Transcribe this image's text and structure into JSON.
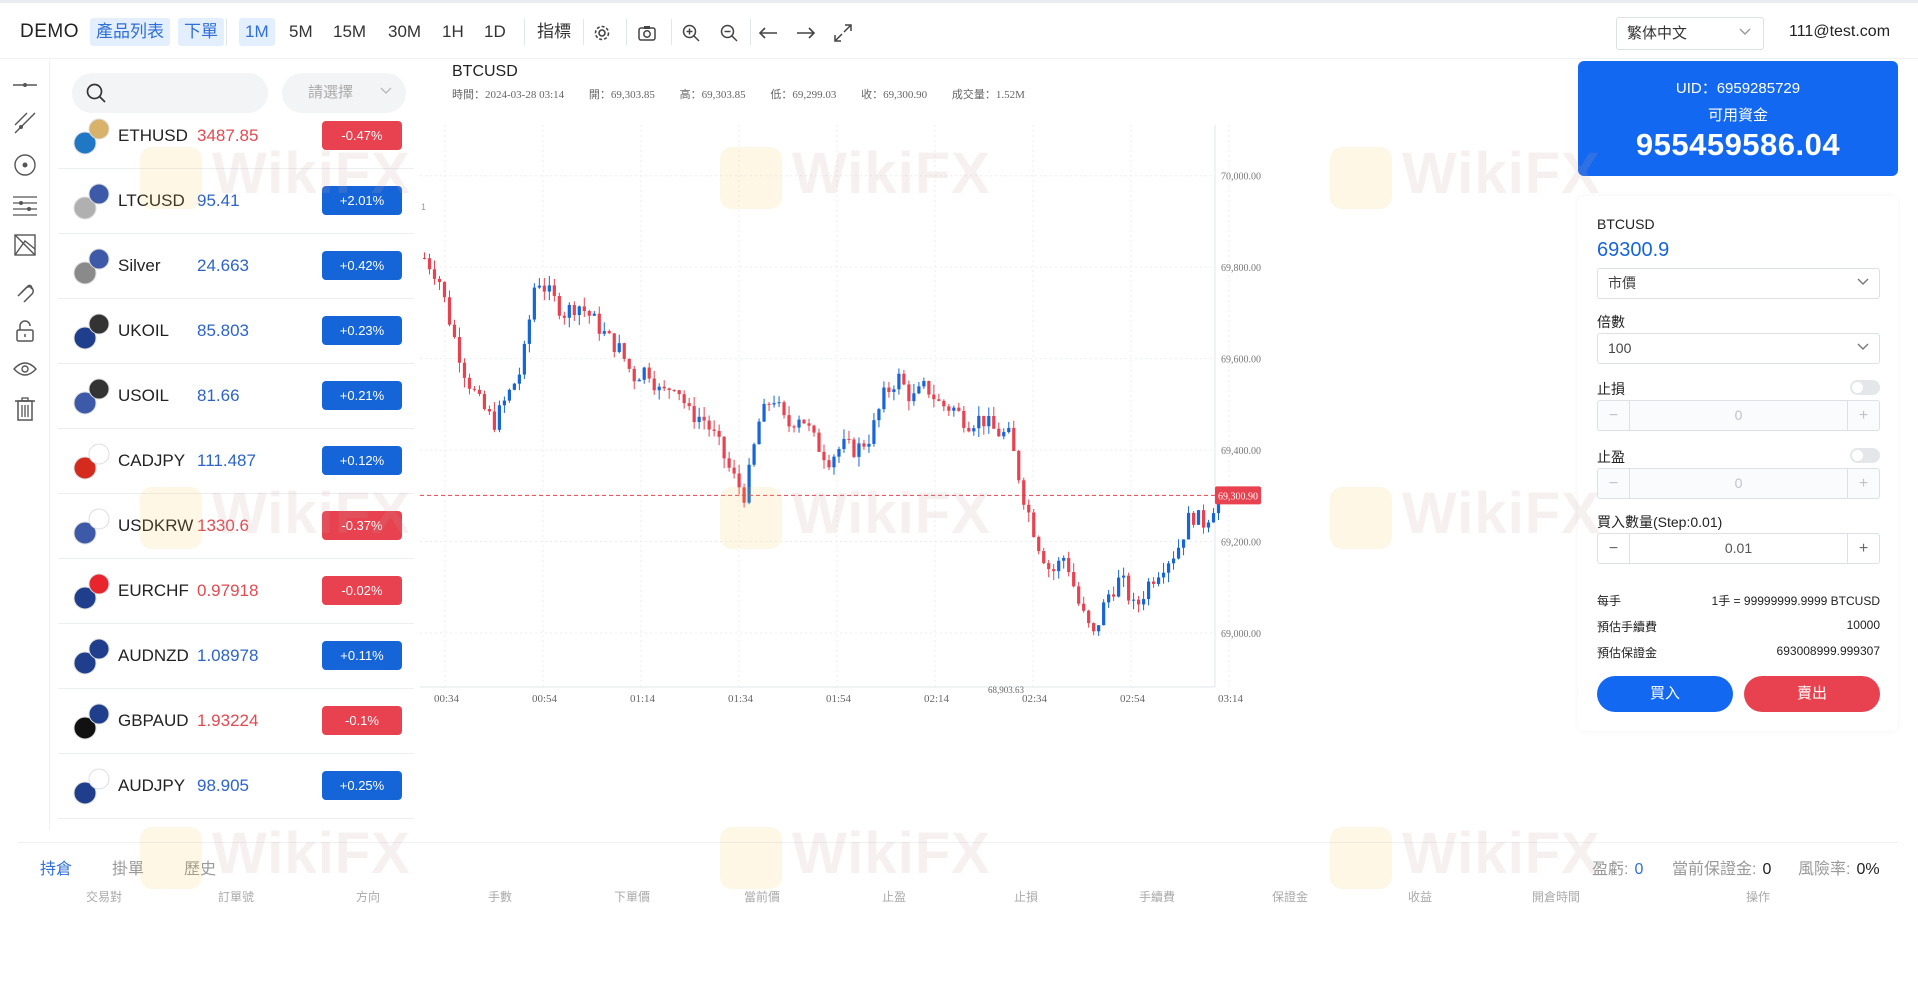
{
  "header": {
    "brand": "DEMO",
    "menu": {
      "products": "產品列表",
      "order": "下單"
    },
    "timeframes": [
      "1M",
      "5M",
      "15M",
      "30M",
      "1H",
      "1D"
    ],
    "active_timeframe": "1M",
    "indicators": "指標",
    "icons": [
      "gear-icon",
      "camera-icon",
      "zoom-in-icon",
      "zoom-out-icon",
      "arrow-left-icon",
      "arrow-right-icon",
      "fullscreen-icon"
    ],
    "language": "繁体中文",
    "user": "111@test.com"
  },
  "tools": [
    "horizontal-line-icon",
    "trend-line-icon",
    "circle-target-icon",
    "fib-lines-icon",
    "pattern-icon",
    "magnet-icon",
    "lock-icon",
    "eye-icon",
    "trash-icon"
  ],
  "product_list": {
    "search_placeholder": "",
    "category_placeholder": "請選擇",
    "items": [
      {
        "symbol": "ETHUSD",
        "price": "3487.85",
        "change": "-0.47%",
        "dir": "down",
        "flags": [
          "#1f77c6",
          "#d8b16b"
        ]
      },
      {
        "symbol": "LTCUSD",
        "price": "95.41",
        "change": "+2.01%",
        "dir": "up",
        "flags": [
          "#b0b0b0",
          "#3c5aa8"
        ]
      },
      {
        "symbol": "Silver",
        "price": "24.663",
        "change": "+0.42%",
        "dir": "up",
        "flags": [
          "#8a8a8a",
          "#3c5aa8"
        ]
      },
      {
        "symbol": "UKOIL",
        "price": "85.803",
        "change": "+0.23%",
        "dir": "up",
        "flags": [
          "#1f3f8c",
          "#333333"
        ]
      },
      {
        "symbol": "USOIL",
        "price": "81.66",
        "change": "+0.21%",
        "dir": "up",
        "flags": [
          "#3c5aa8",
          "#333333"
        ]
      },
      {
        "symbol": "CADJPY",
        "price": "111.487",
        "change": "+0.12%",
        "dir": "up",
        "flags": [
          "#d52b1e",
          "#ffffff"
        ]
      },
      {
        "symbol": "USDKRW",
        "price": "1330.6",
        "change": "-0.37%",
        "dir": "down",
        "flags": [
          "#3c5aa8",
          "#ffffff"
        ]
      },
      {
        "symbol": "EURCHF",
        "price": "0.97918",
        "change": "-0.02%",
        "dir": "down",
        "flags": [
          "#1f3f8c",
          "#e8242c"
        ]
      },
      {
        "symbol": "AUDNZD",
        "price": "1.08978",
        "change": "+0.11%",
        "dir": "up",
        "flags": [
          "#1f3f8c",
          "#1f3f8c"
        ]
      },
      {
        "symbol": "GBPAUD",
        "price": "1.93224",
        "change": "-0.1%",
        "dir": "down",
        "flags": [
          "#111111",
          "#1f3f8c"
        ]
      },
      {
        "symbol": "AUDJPY",
        "price": "98.905",
        "change": "+0.25%",
        "dir": "up",
        "flags": [
          "#1f3f8c",
          "#ffffff"
        ]
      },
      {
        "symbol": "",
        "price": "",
        "change": "",
        "dir": "down",
        "flags": [
          "#d52b1e",
          "#ffffff"
        ]
      }
    ]
  },
  "chart": {
    "symbol": "BTCUSD",
    "info": {
      "time": "時間：2024-03-28 03:14",
      "open": "開：69,303.85",
      "high": "高：69,303.85",
      "low": "低：69,299.03",
      "close": "收：69,300.90",
      "volume": "成交量：1.52M"
    },
    "last_price_label": "69,300.90",
    "low_marker": "68,903.63",
    "y_labels": [
      "70,000.00",
      "69,800.00",
      "69,600.00",
      "69,400.00",
      "69,200.00",
      "69,000.00"
    ],
    "x_labels": [
      "00:34",
      "00:54",
      "01:14",
      "01:34",
      "01:54",
      "02:14",
      "02:34",
      "02:54",
      "03:14"
    ],
    "scale_marker": "1",
    "colors": {
      "up": "#1765d8",
      "down": "#e8414f"
    }
  },
  "chart_data": {
    "type": "candlestick",
    "title": "BTCUSD",
    "xlabel": "",
    "ylabel": "",
    "ylim": [
      68860,
      70100
    ],
    "x": [
      "00:34",
      "00:54",
      "01:14",
      "01:34",
      "01:54",
      "02:14",
      "02:34",
      "02:54",
      "03:14"
    ],
    "close_path": [
      69820,
      69780,
      69660,
      69560,
      69500,
      69460,
      69520,
      69580,
      69780,
      69740,
      69700,
      69720,
      69690,
      69650,
      69620,
      69560,
      69580,
      69520,
      69550,
      69480,
      69470,
      69420,
      69350,
      69300,
      69460,
      69520,
      69450,
      69480,
      69420,
      69380,
      69410,
      69400,
      69430,
      69520,
      69560,
      69510,
      69540,
      69500,
      69490,
      69460,
      69470,
      69440,
      69430,
      69300,
      69200,
      69130,
      69170,
      69060,
      68990,
      69080,
      69120,
      69050,
      69110,
      69150,
      69180,
      69260,
      69240,
      69300
    ],
    "last_price": 69300.9,
    "annotated_low": 68903.63
  },
  "account": {
    "uid": "UID：6959285729",
    "available_label": "可用資金",
    "balance": "955459586.04"
  },
  "order_panel": {
    "symbol": "BTCUSD",
    "price": "69300.9",
    "order_type": "市價",
    "leverage_label": "倍數",
    "leverage": "100",
    "stop_loss_label": "止損",
    "stop_loss": "0",
    "take_profit_label": "止盈",
    "take_profit": "0",
    "qty_label": "買入數量(Step:0.01)",
    "qty": "0.01",
    "lot_label": "每手",
    "lot_value": "1手 = 99999999.9999 BTCUSD",
    "fee_label": "預估手續費",
    "fee_value": "10000",
    "margin_label": "預估保證金",
    "margin_value": "693008999.999307",
    "buy": "買入",
    "sell": "賣出"
  },
  "bottom": {
    "tabs": [
      "持倉",
      "掛單",
      "歷史"
    ],
    "pnl_label": "盈虧:",
    "pnl_value": "0",
    "margin_label": "當前保證金:",
    "margin_value": "0",
    "risk_label": "風險率:",
    "risk_value": "0%",
    "columns": [
      "交易對",
      "訂單號",
      "方向",
      "手數",
      "下單價",
      "當前價",
      "止盈",
      "止損",
      "手續費",
      "保證金",
      "收益",
      "開倉時間",
      "操作"
    ]
  }
}
